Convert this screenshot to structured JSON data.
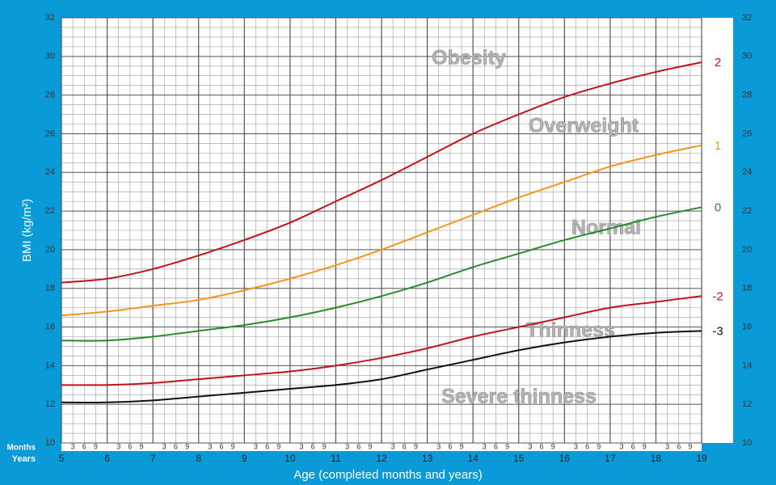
{
  "chart_data": {
    "type": "line",
    "y_label": "BMI (kg/m²)",
    "x_label": "Age (completed months and years)",
    "months_label": "Months",
    "years_label": "Years",
    "month_ticks": [
      3,
      6,
      9
    ],
    "x": [
      5,
      6,
      7,
      8,
      9,
      10,
      11,
      12,
      13,
      14,
      15,
      16,
      17,
      18,
      19
    ],
    "xlim": [
      5,
      19
    ],
    "xticks": [
      5,
      6,
      7,
      8,
      9,
      10,
      11,
      12,
      13,
      14,
      15,
      16,
      17,
      18,
      19
    ],
    "ylim": [
      10,
      32
    ],
    "yticks": [
      10,
      12,
      14,
      16,
      18,
      20,
      22,
      24,
      26,
      28,
      30,
      32
    ],
    "grid": true,
    "series": [
      {
        "name": "2",
        "color": "#c0141b",
        "values": [
          18.3,
          18.5,
          19.0,
          19.7,
          20.5,
          21.4,
          22.5,
          23.6,
          24.8,
          26.0,
          27.0,
          27.9,
          28.6,
          29.2,
          29.7
        ]
      },
      {
        "name": "1",
        "color": "#f7941d",
        "values": [
          16.6,
          16.8,
          17.1,
          17.4,
          17.9,
          18.5,
          19.2,
          20.0,
          20.9,
          21.8,
          22.7,
          23.5,
          24.3,
          24.9,
          25.4
        ]
      },
      {
        "name": "0",
        "color": "#2a8a2a",
        "values": [
          15.3,
          15.3,
          15.5,
          15.8,
          16.1,
          16.5,
          17.0,
          17.6,
          18.3,
          19.1,
          19.8,
          20.5,
          21.1,
          21.7,
          22.2
        ]
      },
      {
        "name": "-2",
        "color": "#c0141b",
        "values": [
          13.0,
          13.0,
          13.1,
          13.3,
          13.5,
          13.7,
          14.0,
          14.4,
          14.9,
          15.5,
          16.0,
          16.5,
          17.0,
          17.3,
          17.6
        ]
      },
      {
        "name": "-3",
        "color": "#111111",
        "values": [
          12.1,
          12.1,
          12.2,
          12.4,
          12.6,
          12.8,
          13.0,
          13.3,
          13.8,
          14.3,
          14.8,
          15.2,
          15.5,
          15.7,
          15.8
        ]
      }
    ],
    "annotations": [
      "Obesity",
      "Overweight",
      "Normal",
      "Thinness",
      "Severe thinness"
    ]
  }
}
